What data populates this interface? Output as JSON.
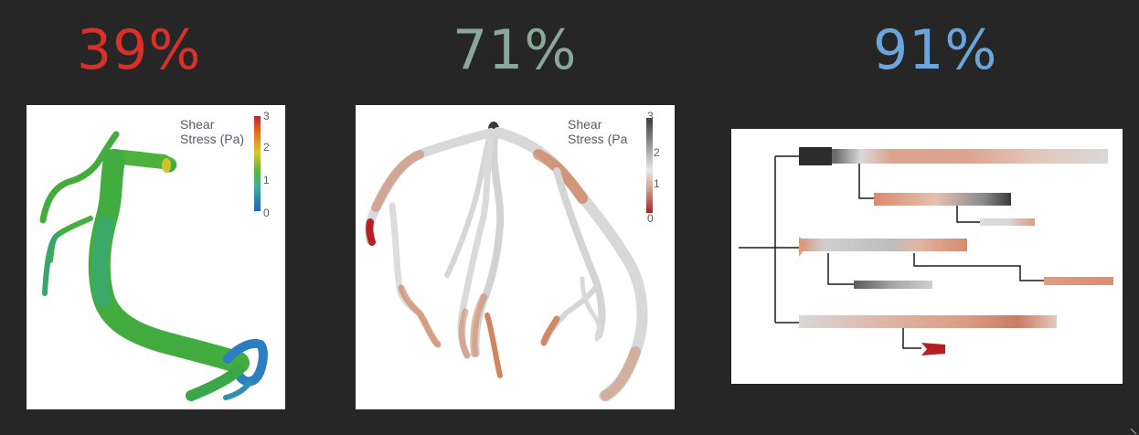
{
  "panels": [
    {
      "percent": "39%",
      "color": "#d9302a",
      "legend": {
        "title_line1": "Shear",
        "title_line2": "Stress (Pa)",
        "ticks": [
          "3",
          "2",
          "1",
          "0"
        ]
      }
    },
    {
      "percent": "71%",
      "color": "#8aa89a",
      "legend": {
        "title_line1": "Shear",
        "title_line2": "Stress (Pa",
        "ticks": [
          "3",
          "2",
          "1",
          "0"
        ]
      }
    },
    {
      "percent": "91%",
      "color": "#6aa6dc"
    }
  ],
  "colors": {
    "background": "#262626",
    "vessel_green": "#3fae3f",
    "vessel_gray": "#d2d2d2",
    "vessel_orange": "#cf7a55",
    "vessel_red": "#b51d22"
  }
}
